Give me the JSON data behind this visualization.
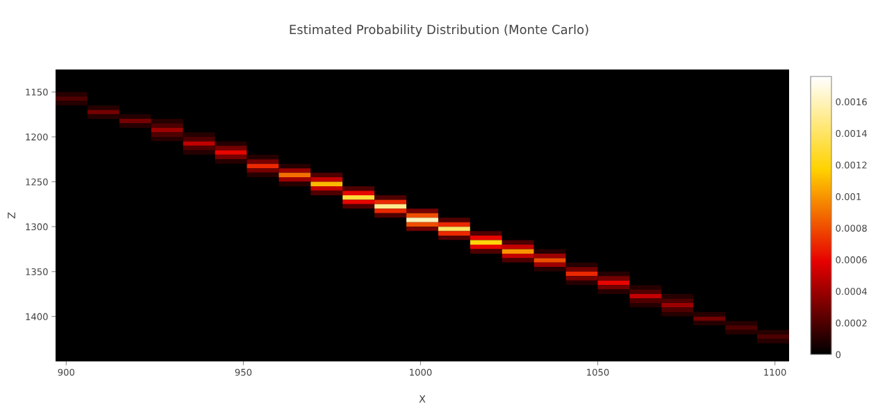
{
  "chart_data": {
    "type": "heatmap",
    "title": "Estimated Probability Distribution (Monte Carlo)",
    "xlabel": "X",
    "ylabel": "Z",
    "x": [
      901.5,
      910.5,
      919.5,
      928.5,
      937.5,
      946.5,
      955.5,
      964.5,
      973.5,
      982.5,
      991.5,
      1000.5,
      1009.5,
      1018.5,
      1027.5,
      1036.5,
      1045.5,
      1054.5,
      1063.5,
      1072.5,
      1081.5,
      1090.5,
      1099.5
    ],
    "y": [
      1127.5,
      1132.5,
      1137.5,
      1142.5,
      1147.5,
      1152.5,
      1157.5,
      1162.5,
      1167.5,
      1172.5,
      1177.5,
      1182.5,
      1187.5,
      1192.5,
      1197.5,
      1202.5,
      1207.5,
      1212.5,
      1217.5,
      1222.5,
      1227.5,
      1232.5,
      1237.5,
      1242.5,
      1247.5,
      1252.5,
      1257.5,
      1262.5,
      1267.5,
      1272.5,
      1277.5,
      1282.5,
      1287.5,
      1292.5,
      1297.5,
      1302.5,
      1307.5,
      1312.5,
      1317.5,
      1322.5,
      1327.5,
      1332.5,
      1337.5,
      1342.5,
      1347.5,
      1352.5,
      1357.5,
      1362.5,
      1367.5,
      1372.5,
      1377.5,
      1382.5,
      1387.5,
      1392.5,
      1397.5,
      1402.5,
      1407.5,
      1412.5,
      1417.5,
      1422.5,
      1427.5,
      1432.5,
      1437.5,
      1442.5,
      1447.5
    ],
    "cells": [
      [
        0,
        0,
        0,
        0,
        0,
        0,
        0,
        0,
        0,
        0,
        0,
        0,
        0,
        0,
        0,
        0,
        0,
        0,
        0,
        0,
        0,
        0,
        0
      ],
      [
        0,
        0,
        0,
        0,
        0,
        0,
        0,
        0,
        0,
        0,
        0,
        0,
        0,
        0,
        0,
        0,
        0,
        0,
        0,
        0,
        0,
        0,
        0
      ],
      [
        0,
        0,
        0,
        0,
        0,
        0,
        0,
        0,
        0,
        0,
        0,
        0,
        0,
        0,
        0,
        0,
        0,
        0,
        0,
        0,
        0,
        0,
        0
      ],
      [
        0,
        0,
        0,
        0,
        0,
        0,
        0,
        0,
        0,
        0,
        0,
        0,
        0,
        0,
        0,
        0,
        0,
        0,
        0,
        0,
        0,
        0,
        0
      ],
      [
        0,
        0,
        0,
        0,
        0,
        0,
        0,
        0,
        0,
        0,
        0,
        0,
        0,
        0,
        0,
        0,
        0,
        0,
        0,
        0,
        0,
        0,
        0
      ],
      [
        0.0001,
        0,
        0,
        0,
        0,
        0,
        0,
        0,
        0,
        0,
        0,
        0,
        0,
        0,
        0,
        0,
        0,
        0,
        0,
        0,
        0,
        0,
        0
      ],
      [
        0.0002,
        0,
        0,
        0,
        0,
        0,
        0,
        0,
        0,
        0,
        0,
        0,
        0,
        0,
        0,
        0,
        0,
        0,
        0,
        0,
        0,
        0,
        0
      ],
      [
        0.0001,
        0,
        0,
        0,
        0,
        0,
        0,
        0,
        0,
        0,
        0,
        0,
        0,
        0,
        0,
        0,
        0,
        0,
        0,
        0,
        0,
        0,
        0
      ],
      [
        0,
        0.0001,
        0,
        0,
        0,
        0,
        0,
        0,
        0,
        0,
        0,
        0,
        0,
        0,
        0,
        0,
        0,
        0,
        0,
        0,
        0,
        0,
        0
      ],
      [
        0,
        0.0003,
        0,
        0,
        0,
        0,
        0,
        0,
        0,
        0,
        0,
        0,
        0,
        0,
        0,
        0,
        0,
        0,
        0,
        0,
        0,
        0,
        0
      ],
      [
        0,
        0.0001,
        0.0001,
        0,
        0,
        0,
        0,
        0,
        0,
        0,
        0,
        0,
        0,
        0,
        0,
        0,
        0,
        0,
        0,
        0,
        0,
        0,
        0
      ],
      [
        0,
        0,
        0.0003,
        0.0001,
        0,
        0,
        0,
        0,
        0,
        0,
        0,
        0,
        0,
        0,
        0,
        0,
        0,
        0,
        0,
        0,
        0,
        0,
        0
      ],
      [
        0,
        0,
        0.0001,
        0.0002,
        0,
        0,
        0,
        0,
        0,
        0,
        0,
        0,
        0,
        0,
        0,
        0,
        0,
        0,
        0,
        0,
        0,
        0,
        0
      ],
      [
        0,
        0,
        0,
        0.0004,
        0,
        0,
        0,
        0,
        0,
        0,
        0,
        0,
        0,
        0,
        0,
        0,
        0,
        0,
        0,
        0,
        0,
        0,
        0
      ],
      [
        0,
        0,
        0,
        0.0002,
        0.0001,
        0,
        0,
        0,
        0,
        0,
        0,
        0,
        0,
        0,
        0,
        0,
        0,
        0,
        0,
        0,
        0,
        0,
        0
      ],
      [
        0,
        0,
        0,
        0.0001,
        0.0002,
        0,
        0,
        0,
        0,
        0,
        0,
        0,
        0,
        0,
        0,
        0,
        0,
        0,
        0,
        0,
        0,
        0,
        0
      ],
      [
        0,
        0,
        0,
        0,
        0.0005,
        0.0001,
        0,
        0,
        0,
        0,
        0,
        0,
        0,
        0,
        0,
        0,
        0,
        0,
        0,
        0,
        0,
        0,
        0
      ],
      [
        0,
        0,
        0,
        0,
        0.0002,
        0.0003,
        0,
        0,
        0,
        0,
        0,
        0,
        0,
        0,
        0,
        0,
        0,
        0,
        0,
        0,
        0,
        0,
        0
      ],
      [
        0,
        0,
        0,
        0,
        0.0001,
        0.0006,
        0,
        0,
        0,
        0,
        0,
        0,
        0,
        0,
        0,
        0,
        0,
        0,
        0,
        0,
        0,
        0,
        0
      ],
      [
        0,
        0,
        0,
        0,
        0,
        0.0003,
        0.0001,
        0,
        0,
        0,
        0,
        0,
        0,
        0,
        0,
        0,
        0,
        0,
        0,
        0,
        0,
        0,
        0
      ],
      [
        0,
        0,
        0,
        0,
        0,
        0.0001,
        0.0003,
        0,
        0,
        0,
        0,
        0,
        0,
        0,
        0,
        0,
        0,
        0,
        0,
        0,
        0,
        0,
        0
      ],
      [
        0,
        0,
        0,
        0,
        0,
        0,
        0.0007,
        0.0001,
        0,
        0,
        0,
        0,
        0,
        0,
        0,
        0,
        0,
        0,
        0,
        0,
        0,
        0,
        0
      ],
      [
        0,
        0,
        0,
        0,
        0,
        0,
        0.0003,
        0.0004,
        0,
        0,
        0,
        0,
        0,
        0,
        0,
        0,
        0,
        0,
        0,
        0,
        0,
        0,
        0
      ],
      [
        0,
        0,
        0,
        0,
        0,
        0,
        0.0001,
        0.0009,
        0.0002,
        0,
        0,
        0,
        0,
        0,
        0,
        0,
        0,
        0,
        0,
        0,
        0,
        0,
        0
      ],
      [
        0,
        0,
        0,
        0,
        0,
        0,
        0,
        0.0004,
        0.0005,
        0,
        0,
        0,
        0,
        0,
        0,
        0,
        0,
        0,
        0,
        0,
        0,
        0,
        0
      ],
      [
        0,
        0,
        0,
        0,
        0,
        0,
        0,
        0.0001,
        0.0011,
        0,
        0,
        0,
        0,
        0,
        0,
        0,
        0,
        0,
        0,
        0,
        0,
        0,
        0
      ],
      [
        0,
        0,
        0,
        0,
        0,
        0,
        0,
        0,
        0.0005,
        0.0002,
        0,
        0,
        0,
        0,
        0,
        0,
        0,
        0,
        0,
        0,
        0,
        0,
        0
      ],
      [
        0,
        0,
        0,
        0,
        0,
        0,
        0,
        0,
        0.0002,
        0.0006,
        0,
        0,
        0,
        0,
        0,
        0,
        0,
        0,
        0,
        0,
        0,
        0,
        0
      ],
      [
        0,
        0,
        0,
        0,
        0,
        0,
        0,
        0,
        0,
        0.0013,
        0.0002,
        0,
        0,
        0,
        0,
        0,
        0,
        0,
        0,
        0,
        0,
        0,
        0
      ],
      [
        0,
        0,
        0,
        0,
        0,
        0,
        0,
        0,
        0,
        0.0006,
        0.0007,
        0,
        0,
        0,
        0,
        0,
        0,
        0,
        0,
        0,
        0,
        0,
        0
      ],
      [
        0,
        0,
        0,
        0,
        0,
        0,
        0,
        0,
        0,
        0.0002,
        0.0015,
        0,
        0,
        0,
        0,
        0,
        0,
        0,
        0,
        0,
        0,
        0,
        0
      ],
      [
        0,
        0,
        0,
        0,
        0,
        0,
        0,
        0,
        0,
        0,
        0.0007,
        0.0003,
        0,
        0,
        0,
        0,
        0,
        0,
        0,
        0,
        0,
        0,
        0
      ],
      [
        0,
        0,
        0,
        0,
        0,
        0,
        0,
        0,
        0,
        0,
        0.0002,
        0.0008,
        0,
        0,
        0,
        0,
        0,
        0,
        0,
        0,
        0,
        0,
        0
      ],
      [
        0,
        0,
        0,
        0,
        0,
        0,
        0,
        0,
        0,
        0,
        0,
        0.0016,
        0.0002,
        0,
        0,
        0,
        0,
        0,
        0,
        0,
        0,
        0,
        0
      ],
      [
        0,
        0,
        0,
        0,
        0,
        0,
        0,
        0,
        0,
        0,
        0,
        0.0008,
        0.0007,
        0,
        0,
        0,
        0,
        0,
        0,
        0,
        0,
        0,
        0
      ],
      [
        0,
        0,
        0,
        0,
        0,
        0,
        0,
        0,
        0,
        0,
        0,
        0.0003,
        0.0014,
        0,
        0,
        0,
        0,
        0,
        0,
        0,
        0,
        0,
        0
      ],
      [
        0,
        0,
        0,
        0,
        0,
        0,
        0,
        0,
        0,
        0,
        0,
        0,
        0.0007,
        0.0002,
        0,
        0,
        0,
        0,
        0,
        0,
        0,
        0,
        0
      ],
      [
        0,
        0,
        0,
        0,
        0,
        0,
        0,
        0,
        0,
        0,
        0,
        0,
        0.0002,
        0.0006,
        0,
        0,
        0,
        0,
        0,
        0,
        0,
        0,
        0
      ],
      [
        0,
        0,
        0,
        0,
        0,
        0,
        0,
        0,
        0,
        0,
        0,
        0,
        0,
        0.0012,
        0.0002,
        0,
        0,
        0,
        0,
        0,
        0,
        0,
        0
      ],
      [
        0,
        0,
        0,
        0,
        0,
        0,
        0,
        0,
        0,
        0,
        0,
        0,
        0,
        0.0006,
        0.0005,
        0,
        0,
        0,
        0,
        0,
        0,
        0,
        0
      ],
      [
        0,
        0,
        0,
        0,
        0,
        0,
        0,
        0,
        0,
        0,
        0,
        0,
        0,
        0.0002,
        0.001,
        0.0001,
        0,
        0,
        0,
        0,
        0,
        0,
        0
      ],
      [
        0,
        0,
        0,
        0,
        0,
        0,
        0,
        0,
        0,
        0,
        0,
        0,
        0,
        0,
        0.0005,
        0.0004,
        0,
        0,
        0,
        0,
        0,
        0,
        0
      ],
      [
        0,
        0,
        0,
        0,
        0,
        0,
        0,
        0,
        0,
        0,
        0,
        0,
        0,
        0,
        0.0002,
        0.0008,
        0,
        0,
        0,
        0,
        0,
        0,
        0
      ],
      [
        0,
        0,
        0,
        0,
        0,
        0,
        0,
        0,
        0,
        0,
        0,
        0,
        0,
        0,
        0,
        0.0004,
        0.0001,
        0,
        0,
        0,
        0,
        0,
        0
      ],
      [
        0,
        0,
        0,
        0,
        0,
        0,
        0,
        0,
        0,
        0,
        0,
        0,
        0,
        0,
        0,
        0.0001,
        0.0003,
        0,
        0,
        0,
        0,
        0,
        0
      ],
      [
        0,
        0,
        0,
        0,
        0,
        0,
        0,
        0,
        0,
        0,
        0,
        0,
        0,
        0,
        0,
        0,
        0.0007,
        0.0001,
        0,
        0,
        0,
        0,
        0
      ],
      [
        0,
        0,
        0,
        0,
        0,
        0,
        0,
        0,
        0,
        0,
        0,
        0,
        0,
        0,
        0,
        0,
        0.0003,
        0.0003,
        0,
        0,
        0,
        0,
        0
      ],
      [
        0,
        0,
        0,
        0,
        0,
        0,
        0,
        0,
        0,
        0,
        0,
        0,
        0,
        0,
        0,
        0,
        0.0001,
        0.0006,
        0,
        0,
        0,
        0,
        0
      ],
      [
        0,
        0,
        0,
        0,
        0,
        0,
        0,
        0,
        0,
        0,
        0,
        0,
        0,
        0,
        0,
        0,
        0,
        0.0003,
        0.0001,
        0,
        0,
        0,
        0
      ],
      [
        0,
        0,
        0,
        0,
        0,
        0,
        0,
        0,
        0,
        0,
        0,
        0,
        0,
        0,
        0,
        0,
        0,
        0.0001,
        0.0002,
        0,
        0,
        0,
        0
      ],
      [
        0,
        0,
        0,
        0,
        0,
        0,
        0,
        0,
        0,
        0,
        0,
        0,
        0,
        0,
        0,
        0,
        0,
        0,
        0.0005,
        0.0001,
        0,
        0,
        0
      ],
      [
        0,
        0,
        0,
        0,
        0,
        0,
        0,
        0,
        0,
        0,
        0,
        0,
        0,
        0,
        0,
        0,
        0,
        0,
        0.0002,
        0.0002,
        0,
        0,
        0
      ],
      [
        0,
        0,
        0,
        0,
        0,
        0,
        0,
        0,
        0,
        0,
        0,
        0,
        0,
        0,
        0,
        0,
        0,
        0,
        0.0001,
        0.0004,
        0,
        0,
        0
      ],
      [
        0,
        0,
        0,
        0,
        0,
        0,
        0,
        0,
        0,
        0,
        0,
        0,
        0,
        0,
        0,
        0,
        0,
        0,
        0,
        0.0002,
        0,
        0,
        0
      ],
      [
        0,
        0,
        0,
        0,
        0,
        0,
        0,
        0,
        0,
        0,
        0,
        0,
        0,
        0,
        0,
        0,
        0,
        0,
        0,
        0.0001,
        0.0001,
        0,
        0
      ],
      [
        0,
        0,
        0,
        0,
        0,
        0,
        0,
        0,
        0,
        0,
        0,
        0,
        0,
        0,
        0,
        0,
        0,
        0,
        0,
        0,
        0.0003,
        0,
        0
      ],
      [
        0,
        0,
        0,
        0,
        0,
        0,
        0,
        0,
        0,
        0,
        0,
        0,
        0,
        0,
        0,
        0,
        0,
        0,
        0,
        0,
        0.0001,
        0.0001,
        0
      ],
      [
        0,
        0,
        0,
        0,
        0,
        0,
        0,
        0,
        0,
        0,
        0,
        0,
        0,
        0,
        0,
        0,
        0,
        0,
        0,
        0,
        0,
        0.0002,
        0
      ],
      [
        0,
        0,
        0,
        0,
        0,
        0,
        0,
        0,
        0,
        0,
        0,
        0,
        0,
        0,
        0,
        0,
        0,
        0,
        0,
        0,
        0,
        0.0001,
        0.0001
      ],
      [
        0,
        0,
        0,
        0,
        0,
        0,
        0,
        0,
        0,
        0,
        0,
        0,
        0,
        0,
        0,
        0,
        0,
        0,
        0,
        0,
        0,
        0,
        0.0002
      ],
      [
        0,
        0,
        0,
        0,
        0,
        0,
        0,
        0,
        0,
        0,
        0,
        0,
        0,
        0,
        0,
        0,
        0,
        0,
        0,
        0,
        0,
        0,
        0.0001
      ],
      [
        0,
        0,
        0,
        0,
        0,
        0,
        0,
        0,
        0,
        0,
        0,
        0,
        0,
        0,
        0,
        0,
        0,
        0,
        0,
        0,
        0,
        0,
        0
      ],
      [
        0,
        0,
        0,
        0,
        0,
        0,
        0,
        0,
        0,
        0,
        0,
        0,
        0,
        0,
        0,
        0,
        0,
        0,
        0,
        0,
        0,
        0,
        0
      ],
      [
        0,
        0,
        0,
        0,
        0,
        0,
        0,
        0,
        0,
        0,
        0,
        0,
        0,
        0,
        0,
        0,
        0,
        0,
        0,
        0,
        0,
        0,
        0
      ],
      [
        0,
        0,
        0,
        0,
        0,
        0,
        0,
        0,
        0,
        0,
        0,
        0,
        0,
        0,
        0,
        0,
        0,
        0,
        0,
        0,
        0,
        0,
        0
      ]
    ],
    "colors": [
      "#000000",
      "#e60000",
      "#ffd200",
      "#ffffff"
    ],
    "xlim": [
      897,
      1104
    ],
    "xticks": [
      900,
      950,
      1000,
      1050,
      1100
    ],
    "ylim": [
      1450,
      1125
    ],
    "yticks": [
      1150,
      1200,
      1250,
      1300,
      1350,
      1400
    ],
    "clim": [
      0,
      0.00176
    ],
    "cticks": [
      0,
      0.0002,
      0.0004,
      0.0006,
      0.0008,
      0.001,
      0.0012,
      0.0014,
      0.0016
    ],
    "grid": false
  }
}
